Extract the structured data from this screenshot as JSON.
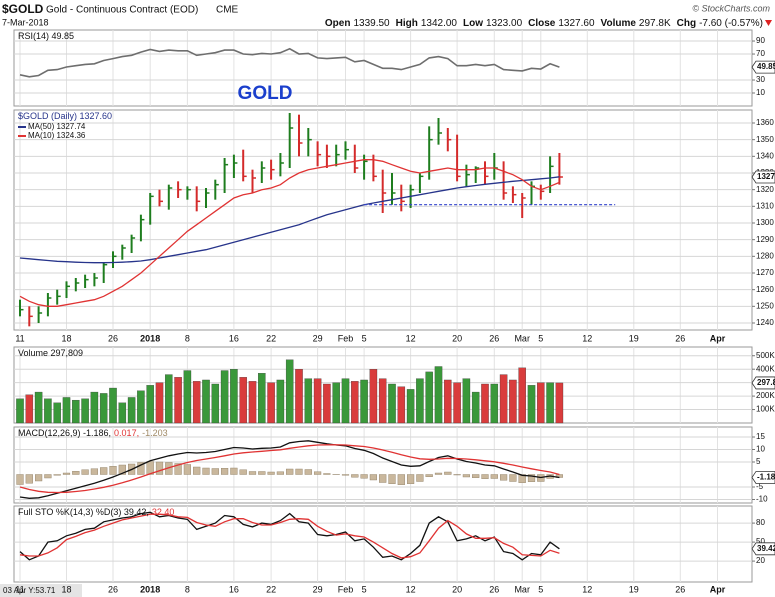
{
  "header": {
    "symbol": "$GOLD",
    "name": "Gold - Continuous Contract (EOD)",
    "exchange": "CME",
    "date": "7-Mar-2018",
    "source": "© StockCharts.com",
    "quote": [
      {
        "label": "Open",
        "value": "1339.50"
      },
      {
        "label": "High",
        "value": "1342.00"
      },
      {
        "label": "Low",
        "value": "1323.00"
      },
      {
        "label": "Close",
        "value": "1327.60"
      },
      {
        "label": "Volume",
        "value": "297.8K"
      },
      {
        "label": "Chg",
        "value": "-7.60 (-0.57%)"
      }
    ],
    "cursor_readout": "03 Apr Y:53.71"
  },
  "chart_data": [
    {
      "type": "line",
      "legend": [
        "RSI(14) 49.85"
      ],
      "annotation": "GOLD",
      "last_label": "49.85",
      "series": [
        {
          "color": "#6e6e6e",
          "values": [
            38,
            35,
            37,
            45,
            46,
            50,
            52,
            54,
            55,
            60,
            63,
            66,
            68,
            73,
            77,
            74,
            76,
            75,
            75,
            68,
            70,
            72,
            76,
            76,
            70,
            69,
            71,
            70,
            72,
            78,
            70,
            71,
            64,
            63,
            64,
            65,
            58,
            60,
            54,
            48,
            48,
            46,
            50,
            54,
            64,
            66,
            63,
            52,
            52,
            54,
            52,
            54,
            46,
            45,
            44,
            48,
            47,
            55,
            49.85
          ]
        }
      ],
      "ylim": [
        -10,
        107
      ],
      "yticks": [
        10,
        30,
        70,
        90
      ],
      "grid": true
    },
    {
      "type": "ohlc",
      "legend": [
        "$GOLD (Daily) 1327.60"
      ],
      "last_label": "1327.60",
      "up_color": "#1e7d1e",
      "down_color": "#d42a2a",
      "categories": [
        "11",
        null,
        null,
        null,
        null,
        "18",
        null,
        null,
        null,
        null,
        "26",
        null,
        null,
        null,
        "2018",
        null,
        null,
        null,
        "8",
        null,
        null,
        null,
        null,
        "16",
        null,
        null,
        null,
        "22",
        null,
        null,
        null,
        null,
        "29",
        null,
        null,
        "Feb",
        null,
        "5",
        null,
        null,
        null,
        null,
        "12",
        null,
        null,
        null,
        null,
        "20",
        null,
        null,
        null,
        "26",
        null,
        null,
        "Mar",
        null,
        "5",
        null,
        null
      ],
      "future_categories": [
        "12",
        "19",
        "26",
        "Apr"
      ],
      "high": [
        1254,
        1250,
        1250,
        1258,
        1260,
        1265,
        1267,
        1269,
        1270,
        1276,
        1283,
        1287,
        1293,
        1305,
        1318,
        1320,
        1323,
        1325,
        1322,
        1322,
        1321,
        1326,
        1339,
        1341,
        1344,
        1332,
        1337,
        1338,
        1342,
        1366,
        1365,
        1357,
        1349,
        1347,
        1347,
        1349,
        1347,
        1341,
        1341,
        1332,
        1330,
        1323,
        1323,
        1330,
        1358,
        1363,
        1357,
        1353,
        1335,
        1334,
        1337,
        1342,
        1337,
        1322,
        1318,
        1325,
        1323,
        1340,
        1342
      ],
      "low": [
        1244,
        1238,
        1240,
        1244,
        1251,
        1255,
        1259,
        1261,
        1262,
        1264,
        1273,
        1278,
        1282,
        1289,
        1299,
        1310,
        1308,
        1315,
        1314,
        1307,
        1309,
        1314,
        1318,
        1327,
        1325,
        1318,
        1324,
        1326,
        1328,
        1333,
        1340,
        1340,
        1334,
        1333,
        1334,
        1338,
        1330,
        1326,
        1325,
        1306,
        1311,
        1307,
        1309,
        1318,
        1326,
        1347,
        1343,
        1325,
        1322,
        1324,
        1323,
        1326,
        1314,
        1312,
        1303,
        1311,
        1314,
        1318,
        1323
      ],
      "close": [
        1248,
        1244,
        1246,
        1255,
        1256,
        1262,
        1264,
        1266,
        1267,
        1275,
        1280,
        1285,
        1291,
        1302,
        1316,
        1313,
        1321,
        1320,
        1320,
        1313,
        1318,
        1323,
        1335,
        1336,
        1328,
        1327,
        1333,
        1332,
        1336,
        1357,
        1348,
        1350,
        1341,
        1340,
        1341,
        1344,
        1333,
        1337,
        1328,
        1318,
        1318,
        1313,
        1320,
        1328,
        1350,
        1354,
        1350,
        1328,
        1329,
        1333,
        1328,
        1333,
        1318,
        1317,
        1315,
        1322,
        1319,
        1334,
        1327.6
      ],
      "series": [
        {
          "name": "MA(50) 1327.74",
          "color": "#27348b",
          "values": [
            1279,
            1278.5,
            1278,
            1277.5,
            1277,
            1276.8,
            1276.5,
            1276.3,
            1276.2,
            1276.2,
            1276.3,
            1276.5,
            1276.8,
            1277.2,
            1278,
            1279,
            1280,
            1281,
            1282,
            1283,
            1284,
            1285.5,
            1287,
            1288.5,
            1290,
            1291.5,
            1293,
            1294.5,
            1296,
            1297.5,
            1299,
            1301,
            1303,
            1305,
            1306.5,
            1308,
            1309.5,
            1311,
            1312,
            1313,
            1314,
            1315,
            1316,
            1317,
            1318,
            1319,
            1320,
            1321,
            1321.8,
            1322.5,
            1323.2,
            1323.8,
            1324.4,
            1325,
            1325.5,
            1326,
            1326.5,
            1327,
            1327.74
          ]
        },
        {
          "name": "MA(10) 1324.36",
          "color": "#e03333",
          "values": [
            1256,
            1253,
            1251,
            1250,
            1250,
            1251,
            1252,
            1253,
            1254,
            1256,
            1259,
            1262,
            1266,
            1270,
            1275,
            1280,
            1285,
            1290,
            1295,
            1299,
            1303,
            1307,
            1311,
            1315,
            1317,
            1318,
            1320,
            1321,
            1323,
            1327,
            1330,
            1332,
            1333,
            1334,
            1335,
            1336,
            1337,
            1338,
            1338,
            1337,
            1335,
            1333,
            1331,
            1330,
            1331,
            1332,
            1333,
            1332,
            1332,
            1332,
            1333,
            1333,
            1331,
            1329,
            1326,
            1322,
            1320,
            1322,
            1324.36
          ]
        }
      ],
      "support_value": 1311,
      "ylim": [
        1235.8,
        1367.8
      ],
      "yticks": [
        1240,
        1250,
        1260,
        1270,
        1280,
        1290,
        1300,
        1310,
        1320,
        1330,
        1340,
        1350,
        1360
      ],
      "grid": true
    },
    {
      "type": "bar",
      "legend": [
        "Volume 297,809"
      ],
      "last_label": "297.8K",
      "up_color": "#3a983a",
      "down_color": "#d93c3c",
      "values": [
        180,
        210,
        230,
        180,
        150,
        190,
        170,
        180,
        230,
        220,
        260,
        150,
        190,
        240,
        280,
        300,
        360,
        340,
        390,
        310,
        320,
        290,
        390,
        400,
        340,
        310,
        370,
        300,
        320,
        470,
        400,
        330,
        330,
        290,
        300,
        330,
        310,
        320,
        400,
        330,
        290,
        270,
        250,
        330,
        380,
        420,
        320,
        300,
        330,
        230,
        290,
        290,
        360,
        320,
        410,
        280,
        300,
        300,
        297.809
      ],
      "ylim": [
        0,
        565
      ],
      "yticks": [
        {
          "value": 100,
          "label": "100K"
        },
        {
          "value": 200,
          "label": "200K"
        },
        {
          "value": 300,
          "label": "300K"
        },
        {
          "value": 400,
          "label": "400K"
        },
        {
          "value": 500,
          "label": "500K"
        }
      ],
      "grid": true
    },
    {
      "type": "macd",
      "legend": [
        "MACD(12,26,9) -1.186,",
        "0.017,",
        "-1.203"
      ],
      "last_label": "-1.186",
      "histogram_color": "#c9b79c",
      "series": [
        {
          "color": "#111111",
          "values": [
            -9,
            -9.5,
            -9.3,
            -8.5,
            -7.5,
            -6.5,
            -5.5,
            -4.5,
            -3.5,
            -2.3,
            -1,
            0.5,
            2,
            3.8,
            5.5,
            6.5,
            7.5,
            8.2,
            8.8,
            8.6,
            8.8,
            9.2,
            10,
            10.8,
            10.6,
            10.2,
            10.5,
            10.6,
            11,
            12.7,
            13.2,
            13.5,
            12.9,
            12.3,
            11.8,
            11.5,
            10.4,
            9.7,
            8.4,
            6.6,
            5.2,
            3.8,
            3.3,
            3.5,
            5.2,
            6.8,
            7.5,
            6.2,
            5.2,
            4.6,
            3.8,
            3.5,
            2.2,
            1,
            -0.3,
            -0.6,
            -1.2,
            -0.6,
            -1.186
          ]
        },
        {
          "color": "#e03333",
          "values": [
            -5,
            -6,
            -6.7,
            -7.1,
            -7.2,
            -7.1,
            -6.8,
            -6.4,
            -5.8,
            -5.1,
            -4.3,
            -3.3,
            -2.2,
            -1,
            0.3,
            1.5,
            2.7,
            3.8,
            4.8,
            5.6,
            6.2,
            6.8,
            7.5,
            8.2,
            8.7,
            9,
            9.3,
            9.6,
            9.9,
            10.5,
            11,
            11.5,
            11.8,
            11.9,
            11.9,
            11.8,
            11.5,
            11.2,
            10.6,
            9.8,
            8.9,
            7.9,
            7,
            6.3,
            6.1,
            6.2,
            6.5,
            6.4,
            6.2,
            5.9,
            5.5,
            5.1,
            4.5,
            3.8,
            3,
            2.3,
            1.6,
            1,
            0.017
          ]
        }
      ],
      "histogram": [
        -4,
        -3.5,
        -2.6,
        -1.4,
        -0.3,
        0.6,
        1.3,
        1.9,
        2.3,
        2.8,
        3.3,
        3.8,
        4.2,
        4.8,
        5.2,
        5,
        4.8,
        4.4,
        4,
        3,
        2.6,
        2.4,
        2.5,
        2.6,
        1.9,
        1.2,
        1.2,
        1,
        1.1,
        2.2,
        2.2,
        2,
        1.1,
        0.4,
        -0.1,
        -0.3,
        -1.1,
        -1.5,
        -2.2,
        -3.2,
        -3.7,
        -4.1,
        -3.7,
        -2.8,
        -0.9,
        0.6,
        1,
        -0.2,
        -1,
        -1.3,
        -1.7,
        -1.6,
        -2.3,
        -2.8,
        -3.3,
        -2.9,
        -2.8,
        -1.6,
        -1.203
      ],
      "ylim": [
        -11.4,
        19
      ],
      "yticks": [
        -10,
        -5,
        5,
        10,
        15
      ],
      "grid": true
    },
    {
      "type": "line",
      "legend": [
        "Full STO %K(14,3) %D(3) 39.42,",
        "32.40"
      ],
      "last_label": "39.42",
      "series": [
        {
          "color": "#111111",
          "values": [
            35,
            22,
            28,
            50,
            52,
            60,
            64,
            70,
            72,
            82,
            85,
            88,
            90,
            95,
            97,
            90,
            92,
            88,
            86,
            70,
            75,
            80,
            92,
            90,
            78,
            74,
            80,
            78,
            84,
            95,
            82,
            80,
            62,
            60,
            62,
            66,
            52,
            55,
            42,
            26,
            28,
            22,
            32,
            45,
            80,
            90,
            82,
            52,
            55,
            60,
            52,
            58,
            35,
            32,
            22,
            32,
            30,
            50,
            39.42
          ]
        },
        {
          "color": "#e03333",
          "values": [
            30,
            28,
            28,
            33,
            41,
            54,
            59,
            65,
            69,
            75,
            80,
            85,
            88,
            91,
            94,
            94,
            93,
            90,
            89,
            81,
            77,
            75,
            82,
            87,
            87,
            81,
            77,
            77,
            81,
            86,
            87,
            86,
            75,
            67,
            61,
            63,
            60,
            58,
            50,
            41,
            32,
            25,
            27,
            33,
            52,
            72,
            84,
            75,
            63,
            56,
            56,
            57,
            48,
            42,
            30,
            29,
            28,
            37,
            32.4
          ]
        }
      ],
      "ylim": [
        -13,
        107
      ],
      "yticks": [
        20,
        50,
        80
      ],
      "grid": true
    }
  ]
}
